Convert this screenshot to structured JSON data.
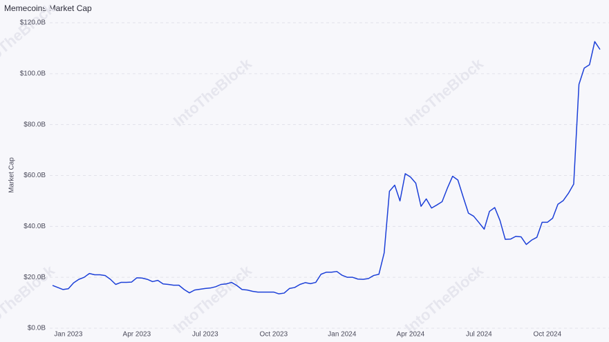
{
  "chart_data": {
    "type": "line",
    "title": "Memecoins Market Cap",
    "y_label": "Market Cap",
    "watermark": "IntoTheBlock",
    "color": "#1b3fd8",
    "grid": true,
    "ylim": [
      0,
      120
    ],
    "yticks": [
      {
        "value": 0,
        "label": "$0.0B"
      },
      {
        "value": 20,
        "label": "$20.0B"
      },
      {
        "value": 40,
        "label": "$40.0B"
      },
      {
        "value": 60,
        "label": "$60.0B"
      },
      {
        "value": 80,
        "label": "$80.0B"
      },
      {
        "value": 100,
        "label": "$100.0B"
      },
      {
        "value": 120,
        "label": "$120.0B"
      }
    ],
    "categories": [
      null,
      null,
      null,
      "Jan 2023",
      null,
      null,
      null,
      null,
      null,
      null,
      null,
      null,
      null,
      null,
      null,
      null,
      "Apr 2023",
      null,
      null,
      null,
      null,
      null,
      null,
      null,
      null,
      null,
      null,
      null,
      null,
      "Jul 2023",
      null,
      null,
      null,
      null,
      null,
      null,
      null,
      null,
      null,
      null,
      null,
      null,
      "Oct 2023",
      null,
      null,
      null,
      null,
      null,
      null,
      null,
      null,
      null,
      null,
      null,
      null,
      "Jan 2024",
      null,
      null,
      null,
      null,
      null,
      null,
      null,
      null,
      null,
      null,
      null,
      null,
      "Apr 2024",
      null,
      null,
      null,
      null,
      null,
      null,
      null,
      null,
      null,
      null,
      null,
      null,
      "Jul 2024",
      null,
      null,
      null,
      null,
      null,
      null,
      null,
      null,
      null,
      null,
      null,
      null,
      "Oct 2024",
      null,
      null,
      null,
      null,
      null,
      null,
      null,
      null,
      null,
      null
    ],
    "values": [
      16.8,
      16,
      15.2,
      15.5,
      17.8,
      19.2,
      20,
      21.5,
      21,
      21,
      20.7,
      19.2,
      17.2,
      18,
      18,
      18.1,
      19.8,
      19.7,
      19.2,
      18.3,
      18.8,
      17.4,
      17.2,
      16.9,
      16.9,
      15.2,
      13.9,
      15,
      15.3,
      15.6,
      15.8,
      16.3,
      17.2,
      17.4,
      18,
      16.8,
      15.2,
      15,
      14.5,
      14.2,
      14.2,
      14.2,
      14.2,
      13.5,
      13.8,
      15.6,
      16,
      17.2,
      17.9,
      17.5,
      18,
      21.2,
      22,
      22,
      22.3,
      20.8,
      20,
      20,
      19.3,
      19.2,
      19.5,
      20.7,
      21.2,
      29.6,
      53.8,
      56.2,
      50,
      60.7,
      59.4,
      57,
      47.9,
      50.8,
      47.2,
      48.4,
      49.7,
      55,
      59.7,
      58.2,
      51.6,
      45.2,
      44,
      41.5,
      38.9,
      45.9,
      47.4,
      42.3,
      34.9,
      35,
      36.1,
      35.9,
      32.9,
      34.6,
      35.7,
      41.6,
      41.6,
      43.2,
      48.7,
      50.1,
      53,
      56.6,
      95.8,
      102.2,
      103.5,
      112.6,
      109.5
    ]
  }
}
